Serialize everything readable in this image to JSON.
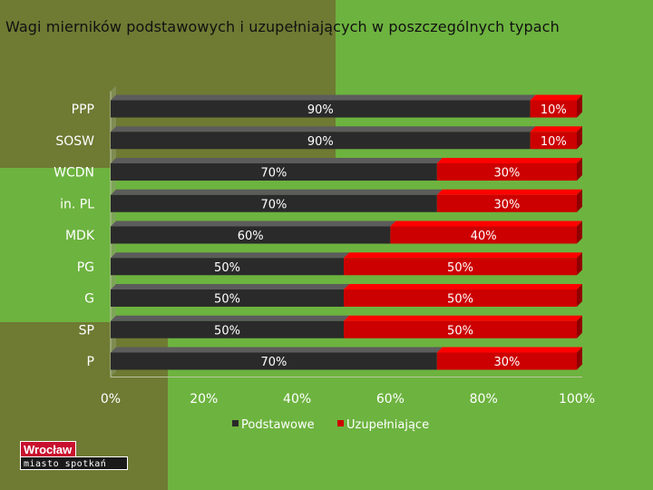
{
  "slide": {
    "title": "Wagi mierników podstawowych i uzupełniających w poszczególnych typach"
  },
  "chart_data": {
    "type": "bar",
    "orientation": "horizontal",
    "stacked": "percent",
    "categories": [
      "PPP",
      "SOSW",
      "WCDN",
      "in. PL",
      "MDK",
      "PG",
      "G",
      "SP",
      "P"
    ],
    "series": [
      {
        "name": "Podstawowe",
        "color": "#2a2a2a",
        "values": [
          90,
          90,
          70,
          70,
          60,
          50,
          50,
          50,
          70
        ]
      },
      {
        "name": "Uzupełniające",
        "color": "#cc0000",
        "values": [
          10,
          10,
          30,
          30,
          40,
          50,
          50,
          50,
          30
        ]
      }
    ],
    "data_label_suffix": "%",
    "x_ticks": [
      "0%",
      "20%",
      "40%",
      "60%",
      "80%",
      "100%"
    ],
    "xlim": [
      0,
      100
    ],
    "legend_position": "bottom",
    "grid": false
  },
  "logo": {
    "top": "Wrocław",
    "bottom": "miasto spotkań"
  }
}
